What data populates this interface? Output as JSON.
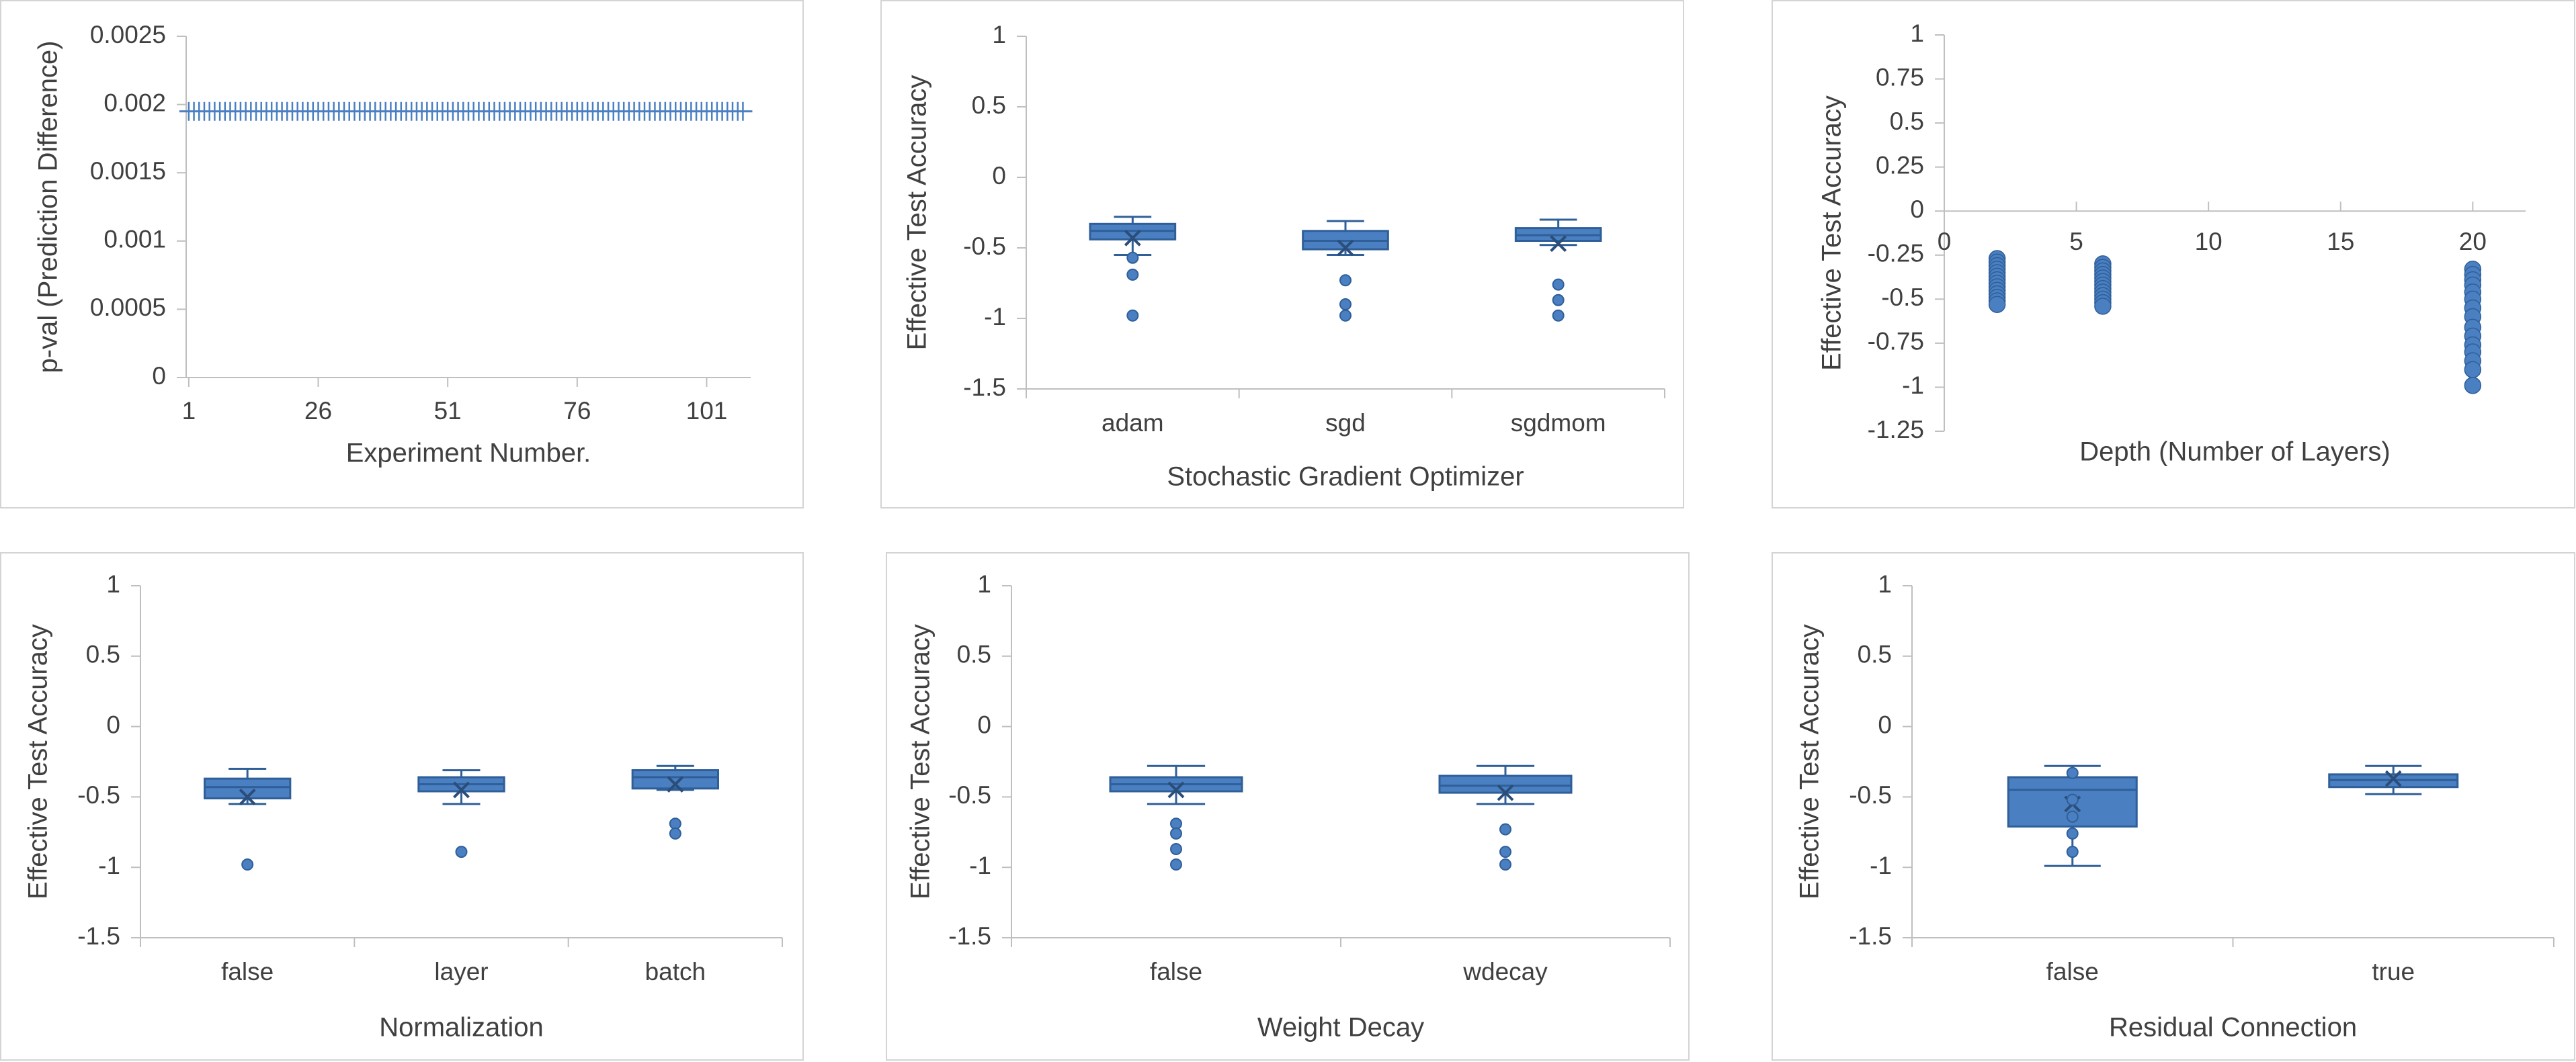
{
  "colors": {
    "series": "#4a7fc1",
    "series_stroke": "#2f5f99",
    "axis": "#bfbfbf",
    "text": "#404040"
  },
  "chart_data": [
    {
      "type": "scatter",
      "xlabel": "Experiment Number.",
      "ylabel": "p-val (Prediction Difference)",
      "ylim": [
        0,
        0.0025
      ],
      "yticks": [
        "0",
        "0.0005",
        "0.001",
        "0.0015",
        "0.002",
        "0.0025"
      ],
      "xticks": [
        "1",
        "26",
        "51",
        "76",
        "101"
      ],
      "xrange": [
        1,
        108
      ],
      "grid": false,
      "marker": "plus",
      "series": [
        {
          "x_from": 1,
          "x_to": 108,
          "y": 0.00195
        }
      ]
    },
    {
      "type": "box",
      "xlabel": "Stochastic Gradient Optimizer",
      "ylabel": "Effective Test Accuracy",
      "ylim": [
        -1.5,
        1
      ],
      "yticks": [
        "1",
        "0.5",
        "0",
        "-0.5",
        "-1",
        "-1.5"
      ],
      "categories": [
        "adam",
        "sgd",
        "sgdmom"
      ],
      "boxes": [
        {
          "min": -0.55,
          "q1": -0.44,
          "median": -0.38,
          "q3": -0.33,
          "max": -0.28,
          "mean": -0.43,
          "outliers": [
            -0.57,
            -0.69,
            -0.98
          ]
        },
        {
          "min": -0.55,
          "q1": -0.51,
          "median": -0.45,
          "q3": -0.38,
          "max": -0.31,
          "mean": -0.5,
          "outliers": [
            -0.73,
            -0.9,
            -0.98
          ]
        },
        {
          "min": -0.48,
          "q1": -0.45,
          "median": -0.41,
          "q3": -0.36,
          "max": -0.3,
          "mean": -0.47,
          "outliers": [
            -0.76,
            -0.87,
            -0.98
          ]
        }
      ]
    },
    {
      "type": "scatter",
      "xlabel": "Depth (Number of Layers)",
      "ylabel": "Effective Test Accuracy",
      "ylim": [
        -1.25,
        1
      ],
      "yticks": [
        "1",
        "0.75",
        "0.5",
        "0.25",
        "0",
        "-0.25",
        "-0.5",
        "-0.75",
        "-1",
        "-1.25"
      ],
      "xticks": [
        "0",
        "5",
        "10",
        "15",
        "20"
      ],
      "xlim": [
        0,
        22
      ],
      "grid": false,
      "series": [
        {
          "x": 2,
          "y": [
            -0.27,
            -0.29,
            -0.31,
            -0.33,
            -0.35,
            -0.37,
            -0.39,
            -0.41,
            -0.43,
            -0.45,
            -0.47,
            -0.49,
            -0.51,
            -0.53
          ]
        },
        {
          "x": 6,
          "y": [
            -0.3,
            -0.32,
            -0.34,
            -0.36,
            -0.38,
            -0.4,
            -0.42,
            -0.44,
            -0.46,
            -0.48,
            -0.5,
            -0.52,
            -0.54
          ]
        },
        {
          "x": 20,
          "y": [
            -0.33,
            -0.36,
            -0.39,
            -0.42,
            -0.46,
            -0.5,
            -0.55,
            -0.6,
            -0.66,
            -0.71,
            -0.76,
            -0.8,
            -0.85,
            -0.9,
            -0.99
          ]
        }
      ]
    },
    {
      "type": "box",
      "xlabel": "Normalization",
      "ylabel": "Effective Test Accuracy",
      "ylim": [
        -1.5,
        1
      ],
      "yticks": [
        "1",
        "0.5",
        "0",
        "-0.5",
        "-1",
        "-1.5"
      ],
      "categories": [
        "false",
        "layer",
        "batch"
      ],
      "boxes": [
        {
          "min": -0.55,
          "q1": -0.51,
          "median": -0.43,
          "q3": -0.37,
          "max": -0.3,
          "mean": -0.5,
          "outliers": [
            -0.98
          ]
        },
        {
          "min": -0.55,
          "q1": -0.46,
          "median": -0.41,
          "q3": -0.36,
          "max": -0.31,
          "mean": -0.45,
          "outliers": [
            -0.89
          ]
        },
        {
          "min": -0.45,
          "q1": -0.44,
          "median": -0.36,
          "q3": -0.31,
          "max": -0.28,
          "mean": -0.41,
          "outliers": [
            -0.69,
            -0.76
          ]
        }
      ]
    },
    {
      "type": "box",
      "xlabel": "Weight Decay",
      "ylabel": "Effective Test Accuracy",
      "ylim": [
        -1.5,
        1
      ],
      "yticks": [
        "1",
        "0.5",
        "0",
        "-0.5",
        "-1",
        "-1.5"
      ],
      "categories": [
        "false",
        "wdecay"
      ],
      "boxes": [
        {
          "min": -0.55,
          "q1": -0.46,
          "median": -0.41,
          "q3": -0.36,
          "max": -0.28,
          "mean": -0.45,
          "outliers": [
            -0.69,
            -0.76,
            -0.87,
            -0.98
          ]
        },
        {
          "min": -0.55,
          "q1": -0.47,
          "median": -0.42,
          "q3": -0.35,
          "max": -0.28,
          "mean": -0.47,
          "outliers": [
            -0.73,
            -0.89,
            -0.98
          ]
        }
      ]
    },
    {
      "type": "box",
      "xlabel": "Residual Connection",
      "ylabel": "Effective Test Accuracy",
      "ylim": [
        -1.5,
        1
      ],
      "yticks": [
        "1",
        "0.5",
        "0",
        "-0.5",
        "-1",
        "-1.5"
      ],
      "categories": [
        "false",
        "true"
      ],
      "boxes": [
        {
          "min": -0.99,
          "q1": -0.71,
          "median": -0.45,
          "q3": -0.36,
          "max": -0.28,
          "mean": -0.55,
          "outliers": [
            -0.33,
            -0.52,
            -0.64,
            -0.76,
            -0.89
          ]
        },
        {
          "min": -0.48,
          "q1": -0.43,
          "median": -0.38,
          "q3": -0.34,
          "max": -0.28,
          "mean": -0.37,
          "outliers": []
        }
      ]
    }
  ]
}
